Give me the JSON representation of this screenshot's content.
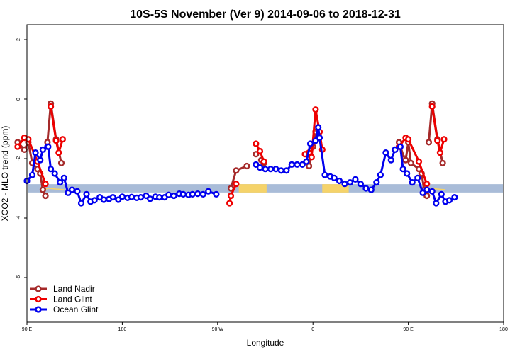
{
  "chart_data": {
    "type": "line",
    "title": "10S-5S November (Ver 9)   2014-09-06 to 2018-12-31",
    "xlabel": "Longitude",
    "ylabel": "XCO2 - MLO trend (ppm)",
    "xlim": [
      90,
      450
    ],
    "ylim": [
      -7.5,
      2.5
    ],
    "x_ticks": [
      {
        "value": 90,
        "label": "90 E"
      },
      {
        "value": 162,
        "label": "180"
      },
      {
        "value": 234,
        "label": "90 W"
      },
      {
        "value": 306,
        "label": "0"
      },
      {
        "value": 378,
        "label": "90 E"
      },
      {
        "value": 450,
        "label": "180"
      }
    ],
    "y_ticks": [
      {
        "value": 2,
        "label": "2"
      },
      {
        "value": 0,
        "label": "0"
      },
      {
        "value": -2,
        "label": "-2"
      },
      {
        "value": -4,
        "label": "-4"
      },
      {
        "value": -6,
        "label": "-6"
      }
    ],
    "legend_position": "bottom-left",
    "map_band": {
      "y_center": -3.0,
      "y_halfwidth": 0.14,
      "ocean_color": "#a9bcd8",
      "land_color": "#f5d36a"
    },
    "series": [
      {
        "name": "Land Nadir",
        "color": "#a52a2a",
        "points": [
          [
            83,
            -1.45
          ],
          [
            88,
            -1.7
          ],
          [
            91,
            -1.45
          ],
          [
            94,
            -2.15
          ],
          [
            98,
            -2.35
          ],
          [
            100,
            -2.5
          ],
          [
            102,
            -3.05
          ],
          [
            104,
            -3.25
          ],
          [
            105.5,
            -1.45
          ],
          [
            108,
            -0.15
          ],
          [
            112,
            -1.35
          ],
          [
            116,
            -2.15
          ],
          [
            244,
            -3.0
          ],
          [
            248,
            -2.4
          ],
          [
            256,
            -2.25
          ],
          [
            263,
            -1.85
          ],
          [
            267,
            -2.05
          ],
          [
            269,
            -2.15
          ],
          [
            303,
            -2.25
          ],
          [
            306,
            -1.6
          ],
          [
            308,
            -1.1
          ],
          [
            310,
            -1.05
          ],
          [
            371,
            -1.45
          ],
          [
            375,
            -2.0
          ],
          [
            376,
            -2.05
          ],
          [
            378,
            -1.45
          ],
          [
            380,
            -2.15
          ],
          [
            386,
            -2.35
          ],
          [
            388,
            -2.5
          ],
          [
            390,
            -3.05
          ],
          [
            392,
            -3.25
          ],
          [
            393.5,
            -1.45
          ],
          [
            396,
            -0.15
          ],
          [
            400,
            -1.35
          ],
          [
            404,
            -2.15
          ]
        ],
        "segments": [
          [
            0,
            8
          ],
          [
            8,
            12
          ],
          [
            12,
            15
          ],
          [
            16,
            18
          ],
          [
            18,
            22
          ],
          [
            22,
            31
          ],
          [
            31,
            35
          ]
        ]
      },
      {
        "name": "Land Glint",
        "color": "#ee0000",
        "points": [
          [
            83,
            -1.6
          ],
          [
            88,
            -1.3
          ],
          [
            91,
            -1.35
          ],
          [
            98,
            -2.1
          ],
          [
            104,
            -2.85
          ],
          [
            108,
            -0.25
          ],
          [
            112,
            -1.4
          ],
          [
            114,
            -1.8
          ],
          [
            117,
            -1.35
          ],
          [
            243,
            -3.5
          ],
          [
            244,
            -3.25
          ],
          [
            248,
            -2.85
          ],
          [
            263,
            -1.5
          ],
          [
            266,
            -1.75
          ],
          [
            269,
            -2.1
          ],
          [
            300,
            -1.85
          ],
          [
            303,
            -1.8
          ],
          [
            305,
            -1.95
          ],
          [
            308,
            -0.35
          ],
          [
            311,
            -1.1
          ],
          [
            313,
            -1.7
          ],
          [
            371,
            -1.6
          ],
          [
            376,
            -1.3
          ],
          [
            378,
            -1.35
          ],
          [
            386,
            -2.1
          ],
          [
            392,
            -2.85
          ],
          [
            396,
            -0.25
          ],
          [
            400,
            -1.4
          ],
          [
            402,
            -1.8
          ],
          [
            405,
            -1.35
          ]
        ],
        "segments": [
          [
            0,
            5
          ],
          [
            5,
            9
          ],
          [
            9,
            12
          ],
          [
            12,
            15
          ],
          [
            15,
            21
          ],
          [
            21,
            26
          ],
          [
            26,
            30
          ]
        ]
      },
      {
        "name": "Ocean Glint",
        "color": "#0000ee",
        "points": [
          [
            90,
            -2.75
          ],
          [
            94,
            -2.55
          ],
          [
            96.5,
            -1.8
          ],
          [
            100,
            -2.05
          ],
          [
            102,
            -1.7
          ],
          [
            105.5,
            -1.6
          ],
          [
            106,
            -1.6
          ],
          [
            108,
            -2.35
          ],
          [
            111,
            -2.5
          ],
          [
            115,
            -2.8
          ],
          [
            118,
            -2.65
          ],
          [
            121,
            -3.15
          ],
          [
            124,
            -3.05
          ],
          [
            128,
            -3.1
          ],
          [
            131,
            -3.5
          ],
          [
            135,
            -3.2
          ],
          [
            138,
            -3.45
          ],
          [
            141,
            -3.4
          ],
          [
            145,
            -3.3
          ],
          [
            148,
            -3.38
          ],
          [
            152,
            -3.36
          ],
          [
            155,
            -3.3
          ],
          [
            159,
            -3.38
          ],
          [
            162,
            -3.28
          ],
          [
            166,
            -3.32
          ],
          [
            169,
            -3.29
          ],
          [
            173,
            -3.32
          ],
          [
            176,
            -3.3
          ],
          [
            180,
            -3.25
          ],
          [
            183,
            -3.35
          ],
          [
            187,
            -3.28
          ],
          [
            190,
            -3.3
          ],
          [
            194,
            -3.3
          ],
          [
            197,
            -3.22
          ],
          [
            201,
            -3.25
          ],
          [
            205,
            -3.18
          ],
          [
            208,
            -3.2
          ],
          [
            212,
            -3.22
          ],
          [
            215,
            -3.2
          ],
          [
            219,
            -3.18
          ],
          [
            223,
            -3.2
          ],
          [
            227,
            -3.1
          ],
          [
            233,
            -3.2
          ],
          [
            263,
            -2.2
          ],
          [
            266,
            -2.3
          ],
          [
            270,
            -2.35
          ],
          [
            274,
            -2.35
          ],
          [
            278,
            -2.35
          ],
          [
            282,
            -2.4
          ],
          [
            286,
            -2.4
          ],
          [
            290,
            -2.2
          ],
          [
            294,
            -2.2
          ],
          [
            298,
            -2.2
          ],
          [
            301,
            -2.1
          ],
          [
            304,
            -1.5
          ],
          [
            308,
            -1.4
          ],
          [
            310,
            -0.95
          ],
          [
            311,
            -1.3
          ],
          [
            315,
            -2.55
          ],
          [
            319,
            -2.6
          ],
          [
            322,
            -2.65
          ],
          [
            326,
            -2.75
          ],
          [
            330,
            -2.85
          ],
          [
            334,
            -2.8
          ],
          [
            338,
            -2.7
          ],
          [
            342,
            -2.85
          ],
          [
            346,
            -3.0
          ],
          [
            350,
            -3.05
          ],
          [
            354,
            -2.8
          ],
          [
            357,
            -2.55
          ],
          [
            361,
            -1.8
          ],
          [
            365,
            -2.05
          ],
          [
            368,
            -1.7
          ],
          [
            372,
            -1.6
          ],
          [
            374,
            -2.35
          ],
          [
            377,
            -2.5
          ],
          [
            381,
            -2.8
          ],
          [
            385,
            -2.65
          ],
          [
            389,
            -3.15
          ],
          [
            392,
            -3.05
          ],
          [
            396,
            -3.1
          ],
          [
            399,
            -3.5
          ],
          [
            403,
            -3.2
          ],
          [
            406,
            -3.45
          ],
          [
            409,
            -3.4
          ],
          [
            413,
            -3.3
          ]
        ],
        "segments": [
          [
            0,
            43
          ],
          [
            43,
            87
          ]
        ]
      }
    ]
  }
}
